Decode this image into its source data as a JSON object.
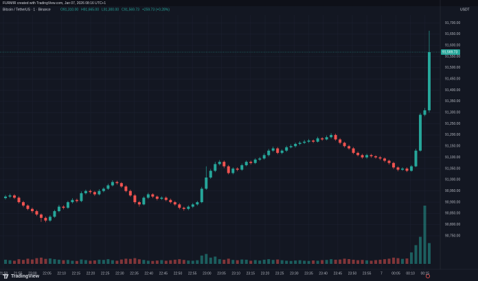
{
  "chart_data": {
    "type": "candlestick",
    "header": "FURMIR created with TradingView.com, Jan 07, 2026 08:16 UTC+1",
    "symbol": "Bitcoin / TetherUS · 1 · Binance",
    "ohlc_text": [
      "O91,310.00",
      "H91,665.00",
      "L91,300.00",
      "C91,569.73",
      "+259.73 (+0.28%)"
    ],
    "currency": "USDT",
    "brand": "TradingView",
    "up_color": "#26a69a",
    "down_color": "#ef5350",
    "open": [
      90918,
      90925,
      90930,
      90920,
      90900,
      90885,
      90870,
      90860,
      90845,
      90830,
      90818,
      90835,
      90860,
      90880,
      90875,
      90900,
      90910,
      90905,
      90940,
      90950,
      90945,
      90935,
      90950,
      90960,
      90975,
      90990,
      90985,
      90970,
      90950,
      90930,
      90900,
      90890,
      90920,
      90935,
      90925,
      90915,
      90920,
      90910,
      90900,
      90890,
      90875,
      90870,
      90880,
      90890,
      90900,
      90960,
      91010,
      91040,
      91070,
      91080,
      91060,
      91030,
      91050,
      91045,
      91065,
      91080,
      91075,
      91090,
      91095,
      91110,
      91130,
      91140,
      91120,
      91130,
      91145,
      91150,
      91160,
      91165,
      91170,
      91175,
      91170,
      91185,
      91180,
      91190,
      91200,
      91180,
      91165,
      91150,
      91140,
      91120,
      91110,
      91100,
      91110,
      91105,
      91100,
      91095,
      91085,
      91075,
      91055,
      91045,
      91050,
      91040,
      91060,
      91130,
      91290,
      91310
    ],
    "high": [
      90932,
      90938,
      90936,
      90926,
      90906,
      90890,
      90876,
      90866,
      90850,
      90836,
      90842,
      90866,
      90888,
      90886,
      90906,
      90918,
      90916,
      90948,
      90956,
      90956,
      90950,
      90958,
      90966,
      90982,
      90998,
      90996,
      90990,
      90976,
      90956,
      90936,
      90906,
      90926,
      90942,
      90940,
      90930,
      90926,
      90926,
      90916,
      90906,
      90896,
      90880,
      90886,
      90896,
      90906,
      90968,
      91060,
      91048,
      91080,
      91088,
      91086,
      91066,
      91056,
      91056,
      91072,
      91086,
      91086,
      91096,
      91102,
      91118,
      91138,
      91148,
      91146,
      91136,
      91152,
      91158,
      91166,
      91172,
      91178,
      91182,
      91180,
      91192,
      91190,
      91198,
      91208,
      91206,
      91186,
      91170,
      91156,
      91146,
      91126,
      91116,
      91116,
      91116,
      91110,
      91106,
      91100,
      91090,
      91080,
      91060,
      91056,
      91056,
      91066,
      91138,
      91298,
      91320,
      91665
    ],
    "low": [
      90912,
      90918,
      90914,
      90894,
      90878,
      90864,
      90852,
      90838,
      90812,
      90810,
      90812,
      90830,
      90855,
      90868,
      90870,
      90894,
      90898,
      90900,
      90934,
      90938,
      90928,
      90930,
      90944,
      90955,
      90970,
      90978,
      90964,
      90944,
      90924,
      90892,
      90880,
      90886,
      90914,
      90918,
      90908,
      90910,
      90904,
      90894,
      90884,
      90868,
      90862,
      90864,
      90874,
      90884,
      90895,
      90955,
      91004,
      91034,
      91064,
      91052,
      91024,
      91024,
      91038,
      91040,
      91060,
      91068,
      91070,
      91084,
      91090,
      91104,
      91124,
      91114,
      91114,
      91124,
      91140,
      91144,
      91154,
      91160,
      91164,
      91164,
      91166,
      91174,
      91176,
      91184,
      91174,
      91158,
      91144,
      91134,
      91114,
      91104,
      91094,
      91094,
      91098,
      91094,
      91088,
      91078,
      91068,
      91048,
      91038,
      91040,
      91034,
      91036,
      91056,
      91125,
      91284,
      91300
    ],
    "close": [
      90925,
      90930,
      90920,
      90900,
      90885,
      90870,
      90860,
      90845,
      90830,
      90818,
      90835,
      90860,
      90880,
      90875,
      90900,
      90910,
      90905,
      90940,
      90950,
      90945,
      90935,
      90950,
      90960,
      90975,
      90990,
      90985,
      90970,
      90950,
      90930,
      90900,
      90890,
      90920,
      90935,
      90925,
      90915,
      90920,
      90910,
      90900,
      90890,
      90875,
      90870,
      90880,
      90890,
      90900,
      90960,
      91010,
      91040,
      91070,
      91080,
      91060,
      91030,
      91050,
      91045,
      91065,
      91080,
      91075,
      91090,
      91095,
      91110,
      91130,
      91140,
      91120,
      91130,
      91145,
      91150,
      91160,
      91165,
      91170,
      91175,
      91170,
      91185,
      91180,
      91190,
      91200,
      91180,
      91165,
      91150,
      91140,
      91120,
      91110,
      91100,
      91110,
      91105,
      91100,
      91095,
      91085,
      91075,
      91055,
      91045,
      91050,
      91040,
      91060,
      91130,
      91290,
      91310,
      91569.73
    ],
    "volume": [
      40,
      35,
      30,
      45,
      38,
      50,
      42,
      55,
      60,
      48,
      52,
      45,
      40,
      35,
      38,
      30,
      28,
      42,
      36,
      30,
      33,
      40,
      38,
      45,
      35,
      30,
      42,
      50,
      48,
      55,
      44,
      38,
      30,
      28,
      32,
      36,
      30,
      35,
      40,
      45,
      38,
      32,
      30,
      35,
      80,
      95,
      60,
      70,
      45,
      40,
      50,
      38,
      35,
      42,
      40,
      30,
      36,
      32,
      40,
      45,
      38,
      42,
      35,
      30,
      28,
      32,
      35,
      30,
      28,
      33,
      30,
      36,
      38,
      45,
      40,
      42,
      50,
      46,
      40,
      35,
      38,
      34,
      30,
      36,
      40,
      45,
      50,
      60,
      55,
      48,
      52,
      110,
      180,
      260,
      560,
      200
    ],
    "last_price": {
      "value": 91569.73,
      "label": "91,569.73"
    },
    "x_labels": [
      "21:50",
      "21:55",
      "22:00",
      "22:05",
      "22:10",
      "22:15",
      "22:20",
      "22:25",
      "22:30",
      "22:35",
      "22:40",
      "22:45",
      "22:50",
      "22:55",
      "23:00",
      "23:05",
      "23:10",
      "23:15",
      "23:20",
      "23:25",
      "23:30",
      "23:35",
      "23:40",
      "23:45",
      "23:50",
      "23:55",
      "7",
      "00:05",
      "00:10",
      "00:15"
    ],
    "ylim": [
      90640,
      91735
    ],
    "yticks": [
      {
        "value": 91700,
        "label": "91,700.00"
      },
      {
        "value": 91650,
        "label": "91,650.00"
      },
      {
        "value": 91600,
        "label": "91,600.00"
      },
      {
        "value": 91550,
        "label": "91,550.00"
      },
      {
        "value": 91500,
        "label": "91,500.00"
      },
      {
        "value": 91450,
        "label": "91,450.00"
      },
      {
        "value": 91400,
        "label": "91,400.00"
      },
      {
        "value": 91350,
        "label": "91,350.00"
      },
      {
        "value": 91300,
        "label": "91,300.00"
      },
      {
        "value": 91250,
        "label": "91,250.00"
      },
      {
        "value": 91200,
        "label": "91,200.00"
      },
      {
        "value": 91150,
        "label": "91,150.00"
      },
      {
        "value": 91100,
        "label": "91,100.00"
      },
      {
        "value": 91050,
        "label": "91,050.00"
      },
      {
        "value": 91000,
        "label": "91,000.00"
      },
      {
        "value": 90950,
        "label": "90,950.00"
      },
      {
        "value": 90900,
        "label": "90,900.00"
      },
      {
        "value": 90850,
        "label": "90,850.00"
      },
      {
        "value": 90800,
        "label": "90,800.00"
      },
      {
        "value": 90750,
        "label": "90,750.00"
      }
    ],
    "grid": true
  }
}
